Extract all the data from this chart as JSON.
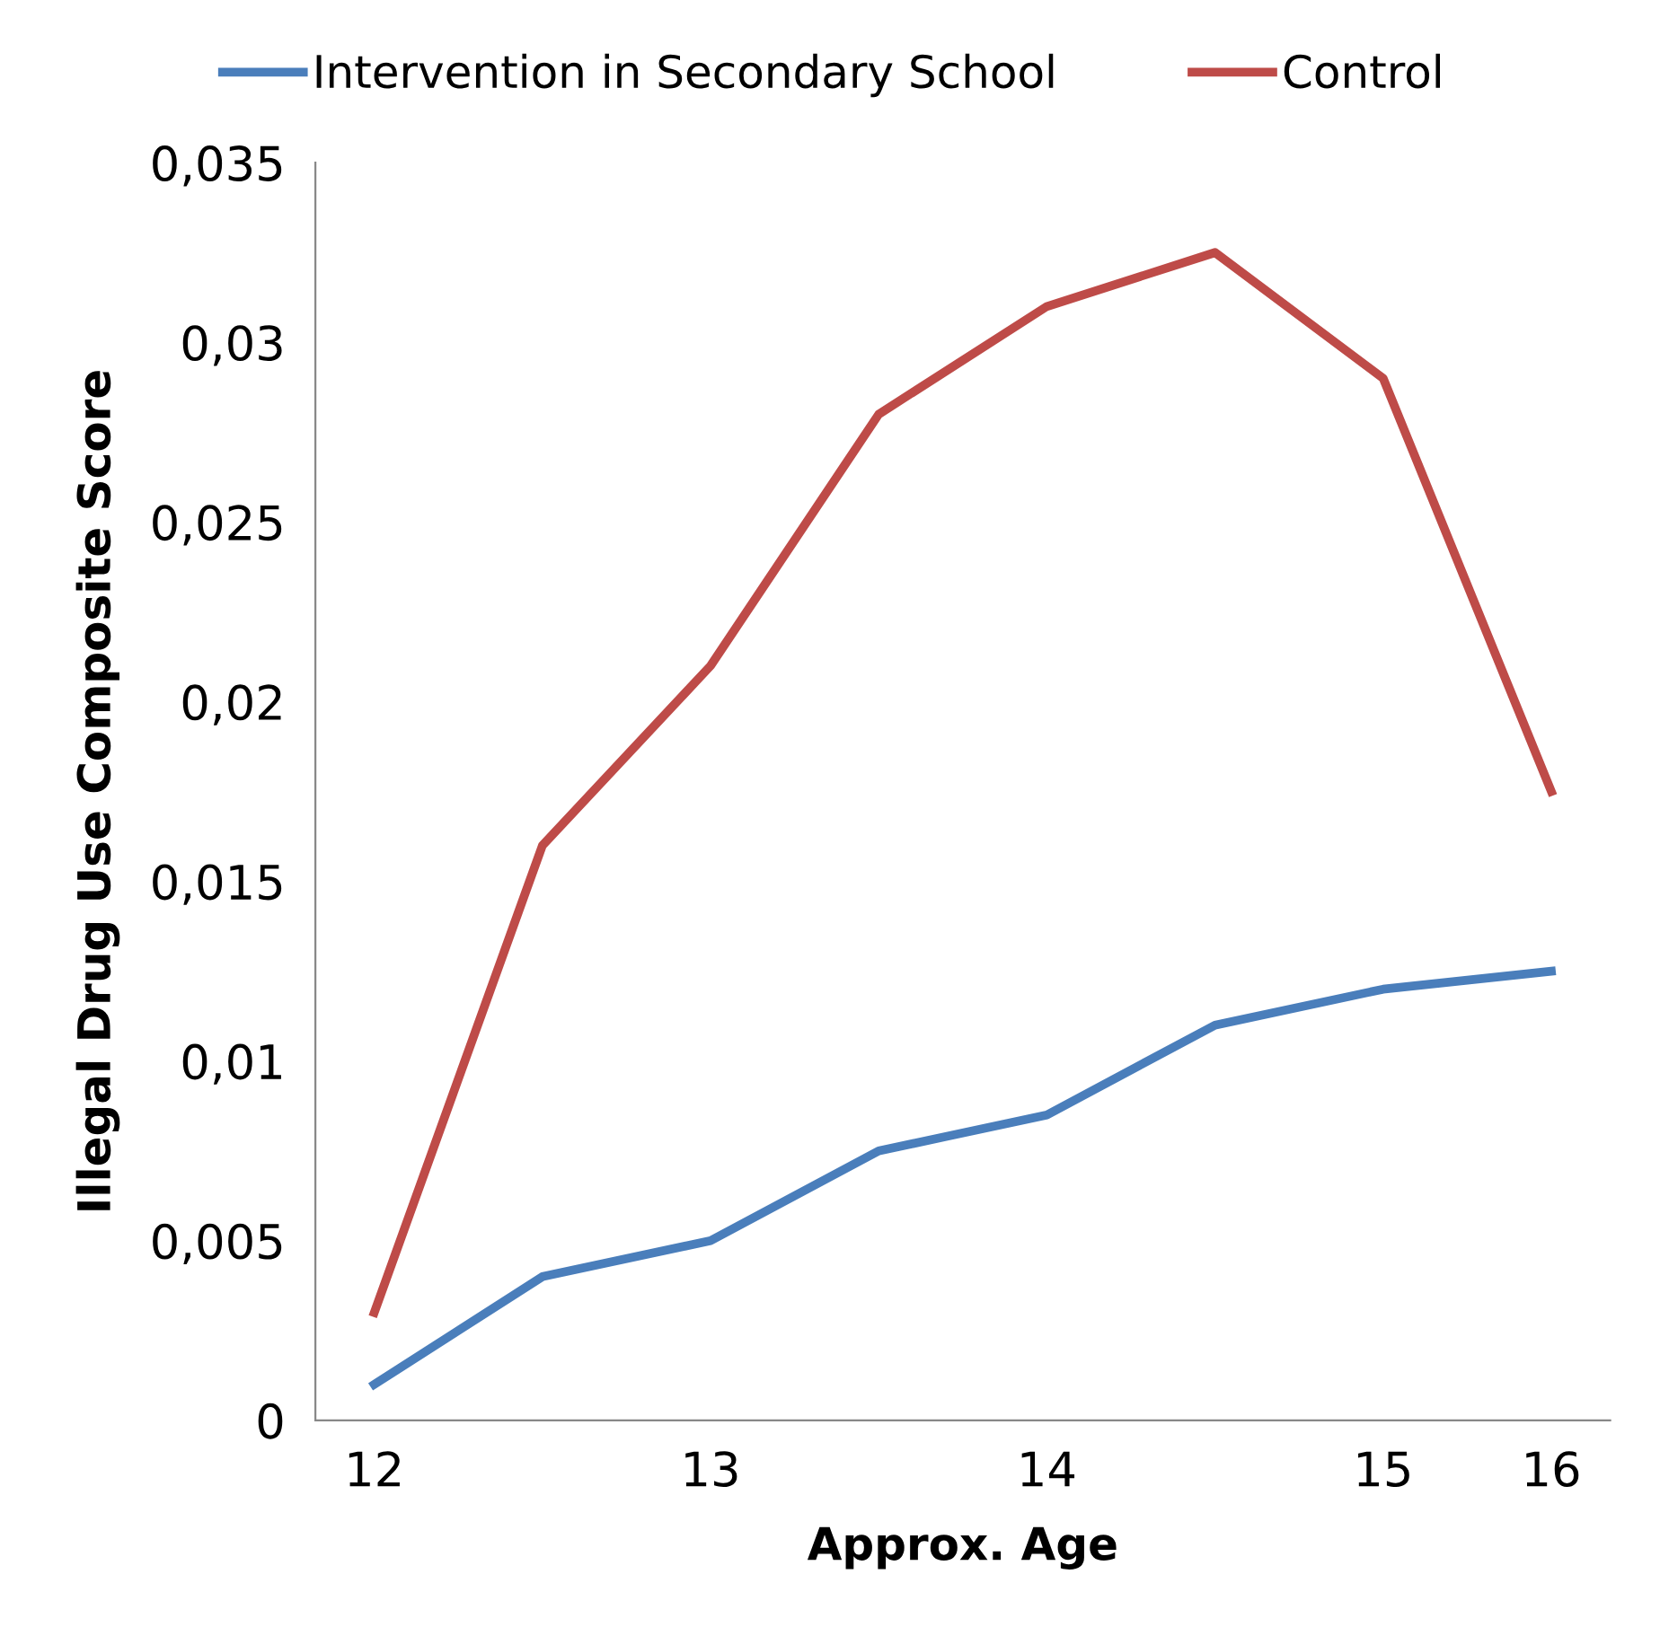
{
  "chart_data": {
    "type": "line",
    "xlabel": "Approx. Age",
    "ylabel": "Illegal Drug Use Composite Score",
    "categories": [
      "12",
      null,
      "13",
      null,
      "14",
      null,
      "15",
      "16"
    ],
    "series": [
      {
        "name": "Intervention in Secondary School",
        "color": "#4a7ebb",
        "values": [
          0.001,
          0.004,
          0.005,
          0.0075,
          0.0085,
          0.011,
          0.012,
          0.0125
        ]
      },
      {
        "name": "Control",
        "color": "#be4b48",
        "values": [
          0.003,
          0.016,
          0.021,
          0.028,
          0.031,
          0.0325,
          0.029,
          0.0175
        ]
      }
    ],
    "ylim": [
      0,
      0.035
    ],
    "yticks": [
      0,
      {
        "value": 0.005,
        "label": "0,005"
      },
      {
        "value": 0.01,
        "label": "0,01"
      },
      {
        "value": 0.015,
        "label": "0,015"
      },
      {
        "value": 0.02,
        "label": "0,02"
      },
      {
        "value": 0.025,
        "label": "0,025"
      },
      {
        "value": 0.03,
        "label": "0,03"
      },
      {
        "value": 0.035,
        "label": "0,035"
      }
    ],
    "grid": false,
    "legend": "top",
    "marker": "none",
    "line_style": "solid"
  }
}
